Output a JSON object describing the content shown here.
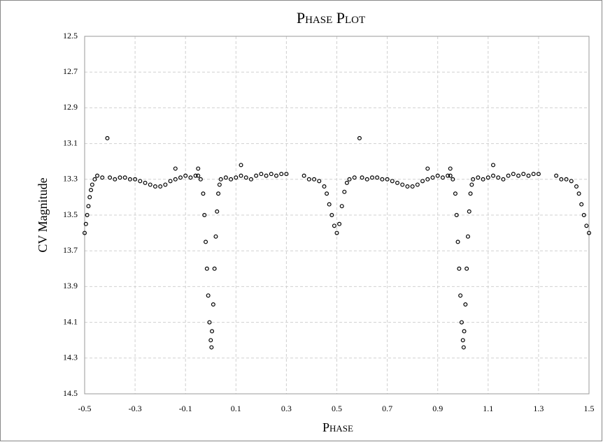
{
  "chart_data": {
    "type": "scatter",
    "title": "Phase Plot",
    "x_label": "Phase",
    "y_label": "CV Magnitude",
    "color": "#000000",
    "grid": true,
    "xlim": [
      -0.5,
      1.5
    ],
    "xticks": [
      -0.5,
      -0.3,
      -0.1,
      0.1,
      0.3,
      0.5,
      0.7,
      0.9,
      1.1,
      1.3,
      1.5
    ],
    "ylim": [
      14.5,
      12.5
    ],
    "yticks": [
      12.5,
      12.7,
      12.9,
      13.1,
      13.3,
      13.5,
      13.7,
      13.9,
      14.1,
      14.3,
      14.5
    ],
    "x": [
      -0.5,
      -0.495,
      -0.49,
      -0.485,
      -0.48,
      -0.475,
      -0.47,
      -0.46,
      -0.45,
      -0.43,
      -0.41,
      -0.4,
      -0.38,
      -0.36,
      -0.34,
      -0.32,
      -0.3,
      -0.28,
      -0.26,
      -0.24,
      -0.22,
      -0.2,
      -0.18,
      -0.16,
      -0.14,
      -0.14,
      -0.12,
      -0.1,
      -0.08,
      -0.06,
      -0.05,
      -0.05,
      -0.04,
      -0.03,
      -0.025,
      -0.02,
      -0.015,
      -0.01,
      -0.005,
      0,
      0.003,
      0.005,
      0.01,
      0.015,
      0.02,
      0.025,
      0.03,
      0.035,
      0.04,
      0.06,
      0.08,
      0.1,
      0.12,
      0.12,
      0.14,
      0.16,
      0.18,
      0.2,
      0.22,
      0.24,
      0.26,
      0.28,
      0.3,
      0.37,
      0.39,
      0.41,
      0.43,
      0.45,
      0.46,
      0.47,
      0.48,
      0.49,
      0.5,
      0.51,
      0.52,
      0.53,
      0.54,
      0.55,
      0.57,
      0.59,
      0.6,
      0.62,
      0.64,
      0.66,
      0.68,
      0.7,
      0.72,
      0.74,
      0.76,
      0.78,
      0.8,
      0.82,
      0.84,
      0.86,
      0.86,
      0.88,
      0.9,
      0.92,
      0.94,
      0.95,
      0.95,
      0.96,
      0.97,
      0.975,
      0.98,
      0.985,
      0.99,
      0.995,
      1,
      1.003,
      1.005,
      1.01,
      1.015,
      1.02,
      1.025,
      1.03,
      1.035,
      1.04,
      1.06,
      1.08,
      1.1,
      1.12,
      1.12,
      1.14,
      1.16,
      1.18,
      1.2,
      1.22,
      1.24,
      1.26,
      1.28,
      1.3,
      1.37,
      1.39,
      1.41,
      1.43,
      1.45,
      1.46,
      1.47,
      1.48,
      1.49,
      1.5
    ],
    "values": [
      13.6,
      13.55,
      13.5,
      13.45,
      13.4,
      13.36,
      13.33,
      13.3,
      13.28,
      13.29,
      13.07,
      13.29,
      13.3,
      13.29,
      13.29,
      13.3,
      13.3,
      13.31,
      13.32,
      13.33,
      13.34,
      13.34,
      13.33,
      13.31,
      13.3,
      13.24,
      13.29,
      13.28,
      13.29,
      13.28,
      13.28,
      13.24,
      13.3,
      13.38,
      13.5,
      13.65,
      13.8,
      13.95,
      14.1,
      14.2,
      14.24,
      14.15,
      14,
      13.8,
      13.62,
      13.48,
      13.38,
      13.33,
      13.3,
      13.29,
      13.3,
      13.29,
      13.28,
      13.22,
      13.29,
      13.3,
      13.28,
      13.27,
      13.28,
      13.27,
      13.28,
      13.27,
      13.27,
      13.28,
      13.3,
      13.3,
      13.31,
      13.34,
      13.38,
      13.44,
      13.5,
      13.56,
      13.6,
      13.55,
      13.45,
      13.37,
      13.32,
      13.3,
      13.29,
      13.07,
      13.29,
      13.3,
      13.29,
      13.29,
      13.3,
      13.3,
      13.31,
      13.32,
      13.33,
      13.34,
      13.34,
      13.33,
      13.31,
      13.3,
      13.24,
      13.29,
      13.28,
      13.29,
      13.28,
      13.28,
      13.24,
      13.3,
      13.38,
      13.5,
      13.65,
      13.8,
      13.95,
      14.1,
      14.2,
      14.24,
      14.15,
      14,
      13.8,
      13.62,
      13.48,
      13.38,
      13.33,
      13.3,
      13.29,
      13.3,
      13.29,
      13.28,
      13.22,
      13.29,
      13.3,
      13.28,
      13.27,
      13.28,
      13.27,
      13.28,
      13.27,
      13.27,
      13.28,
      13.3,
      13.3,
      13.31,
      13.34,
      13.38,
      13.44,
      13.5,
      13.56,
      13.6
    ]
  }
}
